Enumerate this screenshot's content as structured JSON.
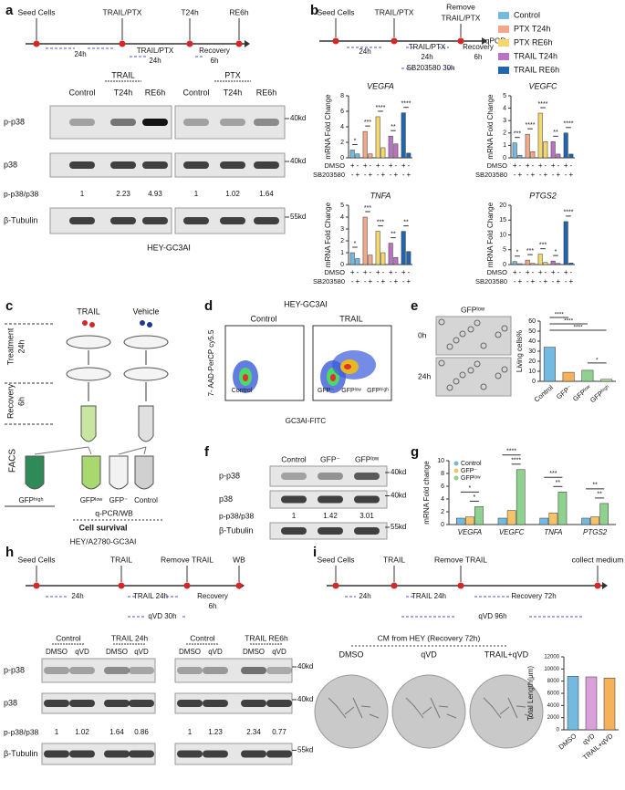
{
  "a": {
    "label": "a",
    "timeline": {
      "events": [
        "Seed Cells",
        "TRAIL/PTX",
        "T24h",
        "RE6h"
      ],
      "intervals": [
        "24h",
        "TRAIL/PTX",
        "24h",
        "Recovery",
        "6h"
      ]
    },
    "blot": {
      "groups": [
        "TRAIL",
        "PTX"
      ],
      "lanes": [
        "Control",
        "T24h",
        "RE6h",
        "Control",
        "T24h",
        "RE6h"
      ],
      "rows": [
        "p-p38",
        "p38",
        "β-Tubulin"
      ],
      "ratio_label": "p-p38/p38",
      "ratios": [
        1,
        2.23,
        4.93,
        1,
        1.02,
        1.64
      ],
      "sizes": [
        "40kd",
        "40kd",
        "55kd"
      ]
    },
    "caption": "HEY-GC3AI"
  },
  "b": {
    "label": "b",
    "timeline": {
      "events": [
        "Seed Cells",
        "TRAIL/PTX",
        "Remove",
        "TRAIL/PTX",
        "qPCR"
      ],
      "intervals": [
        "24h",
        "TRAIL/PTX",
        "24h",
        "Recovery",
        "6h",
        "SB203580 30h"
      ]
    },
    "legend": [
      {
        "name": "Control",
        "color": "#74b9e0"
      },
      {
        "name": "PTX T24h",
        "color": "#f4a88a"
      },
      {
        "name": "PTX RE6h",
        "color": "#f5d76e"
      },
      {
        "name": "TRAIL T24h",
        "color": "#b873c2"
      },
      {
        "name": "TRAIL RE6h",
        "color": "#2166ac"
      }
    ],
    "treatments": [
      {
        "name": "DMSO",
        "signs": [
          "+",
          "-",
          "+",
          "-",
          "+",
          "-",
          "+",
          "-",
          "+",
          "-"
        ]
      },
      {
        "name": "SB203580",
        "signs": [
          "-",
          "+",
          "-",
          "+",
          "-",
          "+",
          "-",
          "+",
          "-",
          "+"
        ]
      }
    ],
    "y_label": "mRNA Fold Change",
    "charts": [
      {
        "type": "bar",
        "title": "VEGFA",
        "ylim": [
          0,
          8
        ],
        "yticks": [
          0,
          2,
          4,
          6,
          8
        ],
        "values": [
          1,
          0.5,
          3.4,
          0.5,
          5.3,
          1.3,
          2.8,
          1.8,
          5.8,
          0.6
        ],
        "stars": [
          "*",
          "***",
          "****",
          "**",
          "****"
        ]
      },
      {
        "type": "bar",
        "title": "VEGFC",
        "ylim": [
          0,
          5
        ],
        "yticks": [
          0,
          1,
          2,
          3,
          4,
          5
        ],
        "values": [
          1.2,
          0.2,
          1.9,
          0.5,
          3.6,
          1.3,
          1.3,
          0.3,
          2,
          0.3
        ],
        "stars": [
          "***",
          "****",
          "****",
          "**",
          "****"
        ]
      },
      {
        "type": "bar",
        "title": "TNFA",
        "ylim": [
          0,
          5
        ],
        "yticks": [
          0,
          1,
          2,
          3,
          4,
          5
        ],
        "values": [
          1,
          0.5,
          4,
          0.8,
          2.8,
          1,
          1.8,
          0.6,
          2.8,
          1.1
        ],
        "stars": [
          "*",
          "***",
          "***",
          "**",
          "**"
        ]
      },
      {
        "type": "bar",
        "title": "PTGS2",
        "ylim": [
          0,
          20
        ],
        "yticks": [
          0,
          5,
          10,
          15,
          20
        ],
        "values": [
          1,
          0.3,
          1.5,
          0.4,
          3.5,
          0.7,
          1.2,
          0.4,
          14.5,
          0.5
        ],
        "stars": [
          "*",
          "***",
          "***",
          "*",
          "****"
        ]
      }
    ]
  },
  "c": {
    "label": "c",
    "agents": [
      "TRAIL",
      "Vehicle"
    ],
    "stages": [
      "Treatment",
      "24h",
      "Recovery",
      "6h",
      "FACS"
    ],
    "fractions": [
      "GFPʰⁱᵍʰ",
      "GFPˡᵒʷ",
      "GFP⁻",
      "Control"
    ],
    "assay": "q-PCR/WB",
    "survival": "Cell survival",
    "caption": "HEY/A2780-GC3AI"
  },
  "d": {
    "label": "d",
    "title": "HEY-GC3AI",
    "plots": [
      "Control",
      "TRAIL"
    ],
    "y_label": "7- AAD-PerCP cy5.5",
    "x_label": "GC3AI-FITC",
    "gates": [
      "Control",
      "GFP⁻",
      "GFPˡᵒʷ",
      "GFPʰⁱᵍʰ"
    ]
  },
  "e": {
    "label": "e",
    "image_title": "GFPˡᵒʷ",
    "times": [
      "0h",
      "24h"
    ],
    "chart": {
      "type": "bar",
      "y_label": "Living cells%",
      "ylim": [
        0,
        60
      ],
      "yticks": [
        0,
        10,
        20,
        30,
        40,
        50,
        60
      ],
      "categories": [
        "Control",
        "GFP⁻",
        "GFPˡᵒʷ",
        "GFPʰⁱᵍʰ"
      ],
      "values": [
        34,
        9,
        11,
        2
      ],
      "colors": [
        "#74b9e0",
        "#f5b25a",
        "#8fd18f",
        "#b6e3a0"
      ],
      "stars": [
        "****",
        "****",
        "****",
        "*"
      ]
    }
  },
  "f": {
    "label": "f",
    "lanes": [
      "Control",
      "GFP⁻",
      "GFPˡᵒʷ"
    ],
    "rows": [
      "p-p38",
      "p38",
      "β-Tubulin"
    ],
    "ratio_label": "p-p38/p38",
    "ratios": [
      1,
      1.42,
      3.01
    ],
    "sizes": [
      "40kd",
      "40kd",
      "55kd"
    ]
  },
  "g": {
    "label": "g",
    "chart": {
      "type": "bar",
      "y_label": "mRNA Fold change",
      "ylim": [
        0,
        10
      ],
      "yticks": [
        0,
        2,
        4,
        6,
        8,
        10
      ],
      "categories": [
        "VEGFA",
        "VEGFC",
        "TNFA",
        "PTGS2"
      ],
      "series": [
        {
          "name": "Control",
          "color": "#74b9e0",
          "values": [
            1,
            1,
            1,
            1
          ]
        },
        {
          "name": "GFP⁻",
          "color": "#f5c469",
          "values": [
            1.2,
            2.2,
            1.8,
            1.2
          ]
        },
        {
          "name": "GFPˡᵒʷ",
          "color": "#8fd18f",
          "values": [
            2.8,
            8.6,
            5.1,
            3.3
          ]
        }
      ],
      "stars": [
        [
          "*",
          "*"
        ],
        [
          "****",
          "****"
        ],
        [
          "***",
          "**"
        ],
        [
          "**",
          "**"
        ]
      ]
    }
  },
  "h": {
    "label": "h",
    "timeline": {
      "events": [
        "Seed Cells",
        "TRAIL",
        "Remove TRAIL",
        "WB"
      ],
      "intervals": [
        "24h",
        "TRAIL 24h",
        "Recovery",
        "6h",
        "qVD 30h"
      ]
    },
    "blot": {
      "groups": [
        "Control",
        "TRAIL 24h",
        "Control",
        "TRAIL RE6h"
      ],
      "lanes": [
        "DMSO",
        "qVD",
        "DMSO",
        "qVD",
        "DMSO",
        "qVD",
        "DMSO",
        "qVD"
      ],
      "rows": [
        "p-p38",
        "p38",
        "β-Tubulin"
      ],
      "ratio_label": "p-p38/p38",
      "ratios": [
        1,
        1.02,
        1.64,
        0.86,
        1,
        1.23,
        2.34,
        0.77
      ],
      "sizes": [
        "40kd",
        "40kd",
        "55kd"
      ]
    }
  },
  "i": {
    "label": "i",
    "timeline": {
      "events": [
        "Seed Cells",
        "TRAIL",
        "Remove TRAIL",
        "collect medium"
      ],
      "intervals": [
        "24h",
        "TRAIL 24h",
        "Recovery 72h",
        "qVD 96h"
      ]
    },
    "image_title": "CM from HEY (Recovery 72h)",
    "images": [
      "DMSO",
      "qVD",
      "TRAIL+qVD"
    ],
    "chart": {
      "type": "bar",
      "y_label": "Total Length(μm)",
      "ylim": [
        0,
        12000
      ],
      "yticks": [
        0,
        2000,
        4000,
        6000,
        8000,
        10000,
        12000
      ],
      "categories": [
        "DMSO",
        "qVD",
        "TRAIL+qVD"
      ],
      "values": [
        8800,
        8700,
        8500
      ],
      "colors": [
        "#74b9e0",
        "#d9a0d9",
        "#f5b25a"
      ]
    }
  }
}
